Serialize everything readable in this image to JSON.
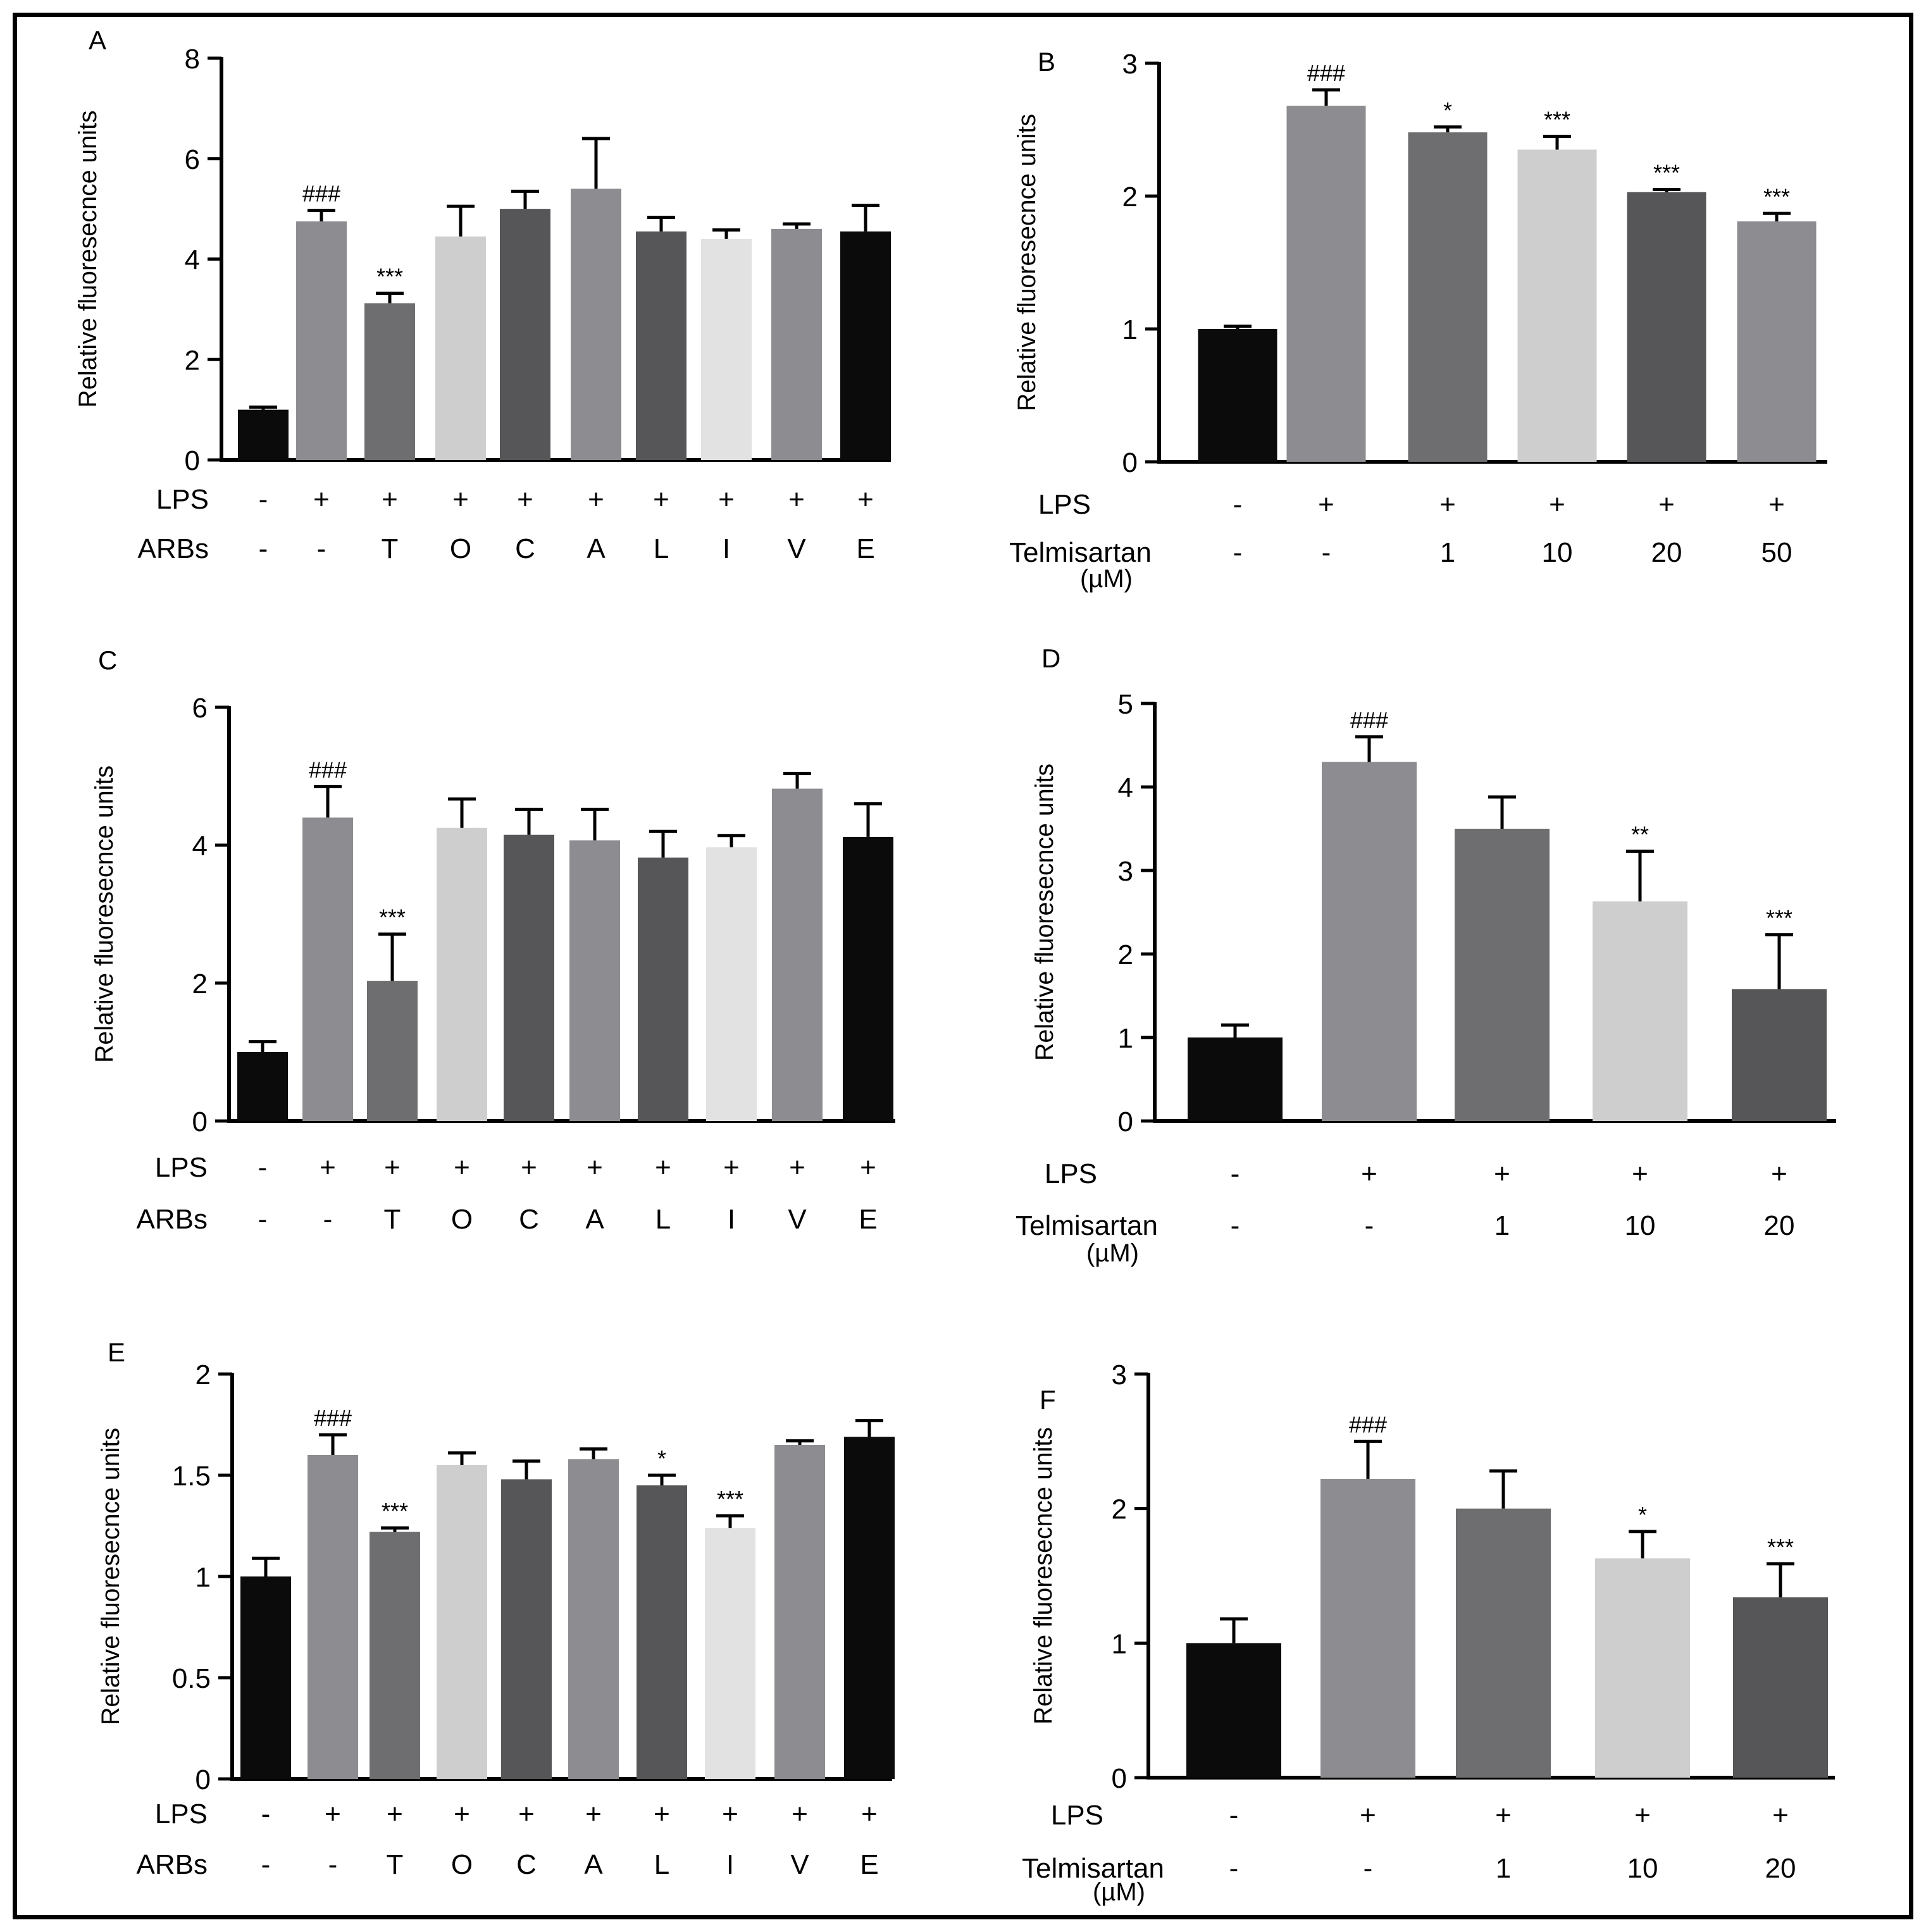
{
  "colors": {
    "black": "#0b0b0b",
    "gray_mid": "#8d8d91",
    "gray_dark": "#6e6e70",
    "gray_light": "#cecece",
    "gray_darker": "#565658",
    "gray_lightest": "#e2e2e2",
    "axis": "#000000"
  },
  "chart_data": [
    {
      "panel": "A",
      "type": "bar",
      "ylabel": "Relative fluoresecnce  units",
      "ylim": [
        0,
        8
      ],
      "yticks": [
        "0",
        "2",
        "4",
        "6",
        "8"
      ],
      "row_labels": [
        "LPS",
        "ARBs"
      ],
      "categories": [
        {
          "LPS": "-",
          "ARBs": "-"
        },
        {
          "LPS": "+",
          "ARBs": "-"
        },
        {
          "LPS": "+",
          "ARBs": "T"
        },
        {
          "LPS": "+",
          "ARBs": "O"
        },
        {
          "LPS": "+",
          "ARBs": "C"
        },
        {
          "LPS": "+",
          "ARBs": "A"
        },
        {
          "LPS": "+",
          "ARBs": "L"
        },
        {
          "LPS": "+",
          "ARBs": "I"
        },
        {
          "LPS": "+",
          "ARBs": "V"
        },
        {
          "LPS": "+",
          "ARBs": "E"
        }
      ],
      "values": [
        1.0,
        4.75,
        3.12,
        4.45,
        5.0,
        5.4,
        4.55,
        4.4,
        4.6,
        4.55
      ],
      "errors": [
        0.05,
        0.22,
        0.2,
        0.6,
        0.35,
        1.0,
        0.28,
        0.18,
        0.1,
        0.52
      ],
      "colors": [
        "black",
        "gray_mid",
        "gray_dark",
        "gray_light",
        "gray_darker",
        "gray_mid",
        "gray_darker",
        "gray_lightest",
        "gray_mid",
        "black"
      ],
      "annotations": [
        "",
        "###",
        "***",
        "",
        "",
        "",
        "",
        "",
        "",
        ""
      ]
    },
    {
      "panel": "B",
      "type": "bar",
      "ylabel": "Relative fluoresecnce  units",
      "ylim": [
        0,
        3
      ],
      "yticks": [
        "0",
        "1",
        "2",
        "3"
      ],
      "row_labels": [
        "LPS",
        "Telmisartan"
      ],
      "row_label_sub": "(µM)",
      "categories": [
        {
          "LPS": "-",
          "Telmisartan": "-"
        },
        {
          "LPS": "+",
          "Telmisartan": "-"
        },
        {
          "LPS": "+",
          "Telmisartan": "1"
        },
        {
          "LPS": "+",
          "Telmisartan": "10"
        },
        {
          "LPS": "+",
          "Telmisartan": "20"
        },
        {
          "LPS": "+",
          "Telmisartan": "50"
        }
      ],
      "values": [
        1.0,
        2.68,
        2.48,
        2.35,
        2.03,
        1.81
      ],
      "errors": [
        0.02,
        0.12,
        0.04,
        0.1,
        0.02,
        0.06
      ],
      "colors": [
        "black",
        "gray_mid",
        "gray_dark",
        "gray_light",
        "gray_darker",
        "gray_mid"
      ],
      "annotations": [
        "",
        "###",
        "*",
        "***",
        "***",
        "***"
      ]
    },
    {
      "panel": "C",
      "type": "bar",
      "ylabel": "Relative fluoresecnce  units",
      "ylim": [
        0,
        6
      ],
      "yticks": [
        "0",
        "2",
        "4",
        "6"
      ],
      "row_labels": [
        "LPS",
        "ARBs"
      ],
      "categories": [
        {
          "LPS": "-",
          "ARBs": "-"
        },
        {
          "LPS": "+",
          "ARBs": "-"
        },
        {
          "LPS": "+",
          "ARBs": "T"
        },
        {
          "LPS": "+",
          "ARBs": "O"
        },
        {
          "LPS": "+",
          "ARBs": "C"
        },
        {
          "LPS": "+",
          "ARBs": "A"
        },
        {
          "LPS": "+",
          "ARBs": "L"
        },
        {
          "LPS": "+",
          "ARBs": "I"
        },
        {
          "LPS": "+",
          "ARBs": "V"
        },
        {
          "LPS": "+",
          "ARBs": "E"
        }
      ],
      "values": [
        1.0,
        4.4,
        2.03,
        4.25,
        4.15,
        4.07,
        3.82,
        3.97,
        4.82,
        4.12
      ],
      "errors": [
        0.15,
        0.45,
        0.68,
        0.42,
        0.37,
        0.45,
        0.38,
        0.17,
        0.22,
        0.48
      ],
      "colors": [
        "black",
        "gray_mid",
        "gray_dark",
        "gray_light",
        "gray_darker",
        "gray_mid",
        "gray_darker",
        "gray_lightest",
        "gray_mid",
        "black"
      ],
      "annotations": [
        "",
        "###",
        "***",
        "",
        "",
        "",
        "",
        "",
        "",
        ""
      ]
    },
    {
      "panel": "D",
      "type": "bar",
      "ylabel": "Relative fluoresecnce  units",
      "ylim": [
        0,
        5
      ],
      "yticks": [
        "0",
        "1",
        "2",
        "3",
        "4",
        "5"
      ],
      "row_labels": [
        "LPS",
        "Telmisartan"
      ],
      "row_label_sub": "(µM)",
      "categories": [
        {
          "LPS": "-",
          "Telmisartan": "-"
        },
        {
          "LPS": "+",
          "Telmisartan": "-"
        },
        {
          "LPS": "+",
          "Telmisartan": "1"
        },
        {
          "LPS": "+",
          "Telmisartan": "10"
        },
        {
          "LPS": "+",
          "Telmisartan": "20"
        }
      ],
      "values": [
        1.0,
        4.3,
        3.5,
        2.63,
        1.58
      ],
      "errors": [
        0.15,
        0.3,
        0.38,
        0.6,
        0.65
      ],
      "colors": [
        "black",
        "gray_mid",
        "gray_dark",
        "gray_light",
        "gray_darker"
      ],
      "annotations": [
        "",
        "###",
        "",
        "**",
        "***"
      ]
    },
    {
      "panel": "E",
      "type": "bar",
      "ylabel": "Relative fluoresecnce  units",
      "ylim": [
        0,
        2
      ],
      "yticks": [
        "0",
        "0.5",
        "1",
        "1.5",
        "2"
      ],
      "row_labels": [
        "LPS",
        "ARBs"
      ],
      "categories": [
        {
          "LPS": "-",
          "ARBs": "-"
        },
        {
          "LPS": "+",
          "ARBs": "-"
        },
        {
          "LPS": "+",
          "ARBs": "T"
        },
        {
          "LPS": "+",
          "ARBs": "O"
        },
        {
          "LPS": "+",
          "ARBs": "C"
        },
        {
          "LPS": "+",
          "ARBs": "A"
        },
        {
          "LPS": "+",
          "ARBs": "L"
        },
        {
          "LPS": "+",
          "ARBs": "I"
        },
        {
          "LPS": "+",
          "ARBs": "V"
        },
        {
          "LPS": "+",
          "ARBs": "E"
        }
      ],
      "values": [
        1.0,
        1.6,
        1.22,
        1.55,
        1.48,
        1.58,
        1.45,
        1.24,
        1.65,
        1.69
      ],
      "errors": [
        0.09,
        0.1,
        0.02,
        0.06,
        0.09,
        0.05,
        0.05,
        0.06,
        0.02,
        0.08
      ],
      "colors": [
        "black",
        "gray_mid",
        "gray_dark",
        "gray_light",
        "gray_darker",
        "gray_mid",
        "gray_darker",
        "gray_lightest",
        "gray_mid",
        "black"
      ],
      "annotations": [
        "",
        "###",
        "***",
        "",
        "",
        "",
        "*",
        "***",
        "",
        ""
      ]
    },
    {
      "panel": "F",
      "type": "bar",
      "ylabel": "Relative fluoresecnce  units",
      "ylim": [
        0,
        3
      ],
      "yticks": [
        "0",
        "1",
        "2",
        "3"
      ],
      "row_labels": [
        "LPS",
        "Telmisartan"
      ],
      "row_label_sub": "(µM)",
      "categories": [
        {
          "LPS": "-",
          "Telmisartan": "-"
        },
        {
          "LPS": "+",
          "Telmisartan": "-"
        },
        {
          "LPS": "+",
          "Telmisartan": "1"
        },
        {
          "LPS": "+",
          "Telmisartan": "10"
        },
        {
          "LPS": "+",
          "Telmisartan": "20"
        }
      ],
      "values": [
        1.0,
        2.22,
        2.0,
        1.63,
        1.34
      ],
      "errors": [
        0.18,
        0.28,
        0.28,
        0.2,
        0.25
      ],
      "colors": [
        "black",
        "gray_mid",
        "gray_dark",
        "gray_light",
        "gray_darker"
      ],
      "annotations": [
        "",
        "###",
        "",
        "*",
        "***"
      ]
    }
  ]
}
